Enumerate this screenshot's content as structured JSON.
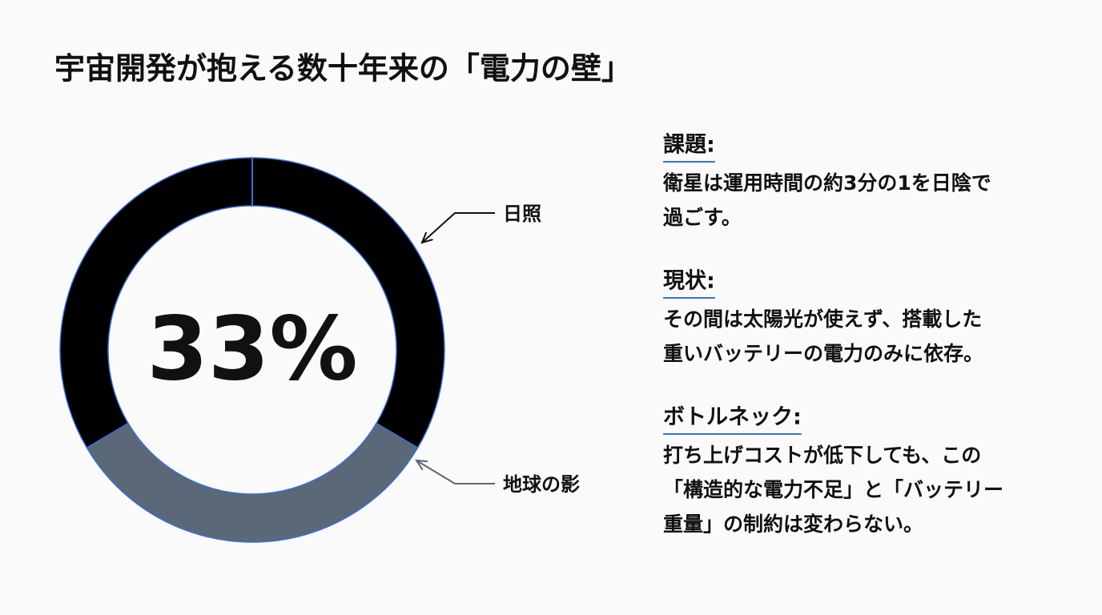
{
  "chart_data": {
    "type": "donut",
    "title": "宇宙開発が抱える数十年来の「電力の壁」",
    "categories": [
      "日照",
      "地球の影"
    ],
    "values": [
      67,
      33
    ],
    "value_labels": [
      null,
      "33%"
    ],
    "colors": [
      "#000000",
      "#5a6877"
    ]
  },
  "notes": [
    {
      "heading": "課題:",
      "lines": [
        "衛星は運用時間の約3分の1を日陰で",
        "過ごす。"
      ]
    },
    {
      "heading": "現状:",
      "lines": [
        "その間は太陽光が使えず、搭載した",
        "重いバッテリーの電力のみに依存。"
      ]
    },
    {
      "heading": "ボトルネック:",
      "lines": [
        "打ち上げコストが低下しても、この",
        "「構造的な電力不足」と「バッテリー",
        "重量」の制約は変わらない。"
      ]
    }
  ]
}
